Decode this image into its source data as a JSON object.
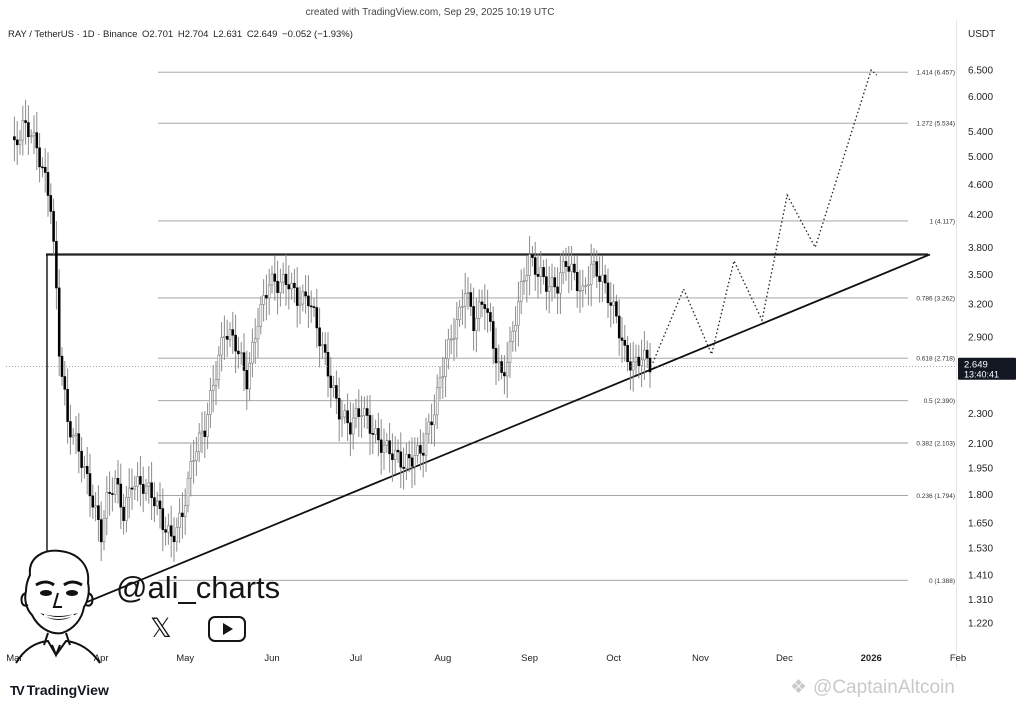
{
  "header": {
    "created_text": "created with TradingView.com, Sep 29, 2025 10:19 UTC",
    "symbol": "RAY / TetherUS · 1D · Binance",
    "open": "O2.701",
    "high": "H2.704",
    "low": "L2.631",
    "close": "C2.649",
    "change": "−0.052 (−1.93%)",
    "currency": "USDT"
  },
  "footer": {
    "brand": "TradingView",
    "brand_logo": "TV",
    "watermark": "@CaptainAltcoin",
    "handle": "@ali_charts",
    "social_icons": [
      "x-icon",
      "youtube-icon"
    ]
  },
  "colors": {
    "candle": "#000000",
    "wick": "#8a8a8a",
    "fib_line": "#9a9a9a",
    "price_label_bg": "#131722",
    "price_label_text": "#ffffff"
  },
  "chart_data": {
    "type": "candlestick",
    "symbol": "RAY/USDT",
    "interval": "1D",
    "x_axis": {
      "tick_labels": [
        "Mar",
        "Apr",
        "May",
        "Jun",
        "Jul",
        "Aug",
        "Sep",
        "Oct",
        "Nov",
        "Dec",
        "2026",
        "Feb"
      ]
    },
    "y_axis": {
      "scale": "log",
      "range": [
        1.15,
        7.1
      ],
      "tick_labels": [
        "6.500",
        "6.000",
        "5.400",
        "5.000",
        "4.600",
        "4.200",
        "3.800",
        "3.500",
        "3.200",
        "2.900",
        "2.300",
        "2.100",
        "1.950",
        "1.800",
        "1.650",
        "1.530",
        "1.410",
        "1.310",
        "1.220"
      ]
    },
    "current_price": {
      "price": "2.649",
      "countdown": "13:40:41",
      "value": 2.649
    },
    "fib_levels": [
      {
        "label": "1.414 (6.457)",
        "value": 6.457
      },
      {
        "label": "1.272 (5.534)",
        "value": 5.534
      },
      {
        "label": "1 (4.117)",
        "value": 4.117
      },
      {
        "label": "0.786 (3.262)",
        "value": 3.262
      },
      {
        "label": "0.618 (2.718)",
        "value": 2.718
      },
      {
        "label": "0.5 (2.390)",
        "value": 2.39
      },
      {
        "label": "0.382 (2.103)",
        "value": 2.103
      },
      {
        "label": "0.236 (1.794)",
        "value": 1.794
      },
      {
        "label": "0 (1.388)",
        "value": 1.388
      }
    ],
    "resistance_level": 3.72,
    "support_trendline": [
      {
        "x": "2025-03-18",
        "y": 1.26
      },
      {
        "x": "2026-01-22",
        "y": 3.72
      }
    ],
    "close_path": [
      {
        "x": "2025-03-01",
        "y": 5.2
      },
      {
        "x": "2025-03-04",
        "y": 5.45
      },
      {
        "x": "2025-03-07",
        "y": 5.3
      },
      {
        "x": "2025-03-11",
        "y": 4.85
      },
      {
        "x": "2025-03-14",
        "y": 4.4
      },
      {
        "x": "2025-03-17",
        "y": 2.8
      },
      {
        "x": "2025-03-20",
        "y": 2.2
      },
      {
        "x": "2025-03-24",
        "y": 2.05
      },
      {
        "x": "2025-03-28",
        "y": 1.85
      },
      {
        "x": "2025-04-01",
        "y": 1.6
      },
      {
        "x": "2025-04-03",
        "y": 1.75
      },
      {
        "x": "2025-04-06",
        "y": 1.85
      },
      {
        "x": "2025-04-09",
        "y": 1.7
      },
      {
        "x": "2025-04-12",
        "y": 1.9
      },
      {
        "x": "2025-04-16",
        "y": 1.85
      },
      {
        "x": "2025-04-20",
        "y": 1.75
      },
      {
        "x": "2025-04-23",
        "y": 1.65
      },
      {
        "x": "2025-04-26",
        "y": 1.6
      },
      {
        "x": "2025-04-30",
        "y": 1.7
      },
      {
        "x": "2025-05-04",
        "y": 2.0
      },
      {
        "x": "2025-05-08",
        "y": 2.2
      },
      {
        "x": "2025-05-11",
        "y": 2.55
      },
      {
        "x": "2025-05-15",
        "y": 2.95
      },
      {
        "x": "2025-05-19",
        "y": 2.8
      },
      {
        "x": "2025-05-23",
        "y": 2.55
      },
      {
        "x": "2025-05-27",
        "y": 3.1
      },
      {
        "x": "2025-05-31",
        "y": 3.4
      },
      {
        "x": "2025-06-03",
        "y": 3.35
      },
      {
        "x": "2025-06-07",
        "y": 3.45
      },
      {
        "x": "2025-06-10",
        "y": 3.3
      },
      {
        "x": "2025-06-14",
        "y": 3.25
      },
      {
        "x": "2025-06-18",
        "y": 2.85
      },
      {
        "x": "2025-06-22",
        "y": 2.55
      },
      {
        "x": "2025-06-25",
        "y": 2.35
      },
      {
        "x": "2025-06-29",
        "y": 2.2
      },
      {
        "x": "2025-07-03",
        "y": 2.3
      },
      {
        "x": "2025-07-07",
        "y": 2.2
      },
      {
        "x": "2025-07-11",
        "y": 2.1
      },
      {
        "x": "2025-07-15",
        "y": 2.0
      },
      {
        "x": "2025-07-18",
        "y": 1.95
      },
      {
        "x": "2025-07-22",
        "y": 2.05
      },
      {
        "x": "2025-07-25",
        "y": 2.1
      },
      {
        "x": "2025-07-29",
        "y": 2.3
      },
      {
        "x": "2025-08-01",
        "y": 2.6
      },
      {
        "x": "2025-08-04",
        "y": 2.9
      },
      {
        "x": "2025-08-07",
        "y": 3.15
      },
      {
        "x": "2025-08-09",
        "y": 3.4
      },
      {
        "x": "2025-08-12",
        "y": 3.0
      },
      {
        "x": "2025-08-16",
        "y": 3.2
      },
      {
        "x": "2025-08-19",
        "y": 2.85
      },
      {
        "x": "2025-08-22",
        "y": 2.6
      },
      {
        "x": "2025-08-25",
        "y": 2.8
      },
      {
        "x": "2025-08-29",
        "y": 3.3
      },
      {
        "x": "2025-09-01",
        "y": 3.65
      },
      {
        "x": "2025-09-05",
        "y": 3.55
      },
      {
        "x": "2025-09-08",
        "y": 3.4
      },
      {
        "x": "2025-09-11",
        "y": 3.35
      },
      {
        "x": "2025-09-14",
        "y": 3.6
      },
      {
        "x": "2025-09-17",
        "y": 3.5
      },
      {
        "x": "2025-09-20",
        "y": 3.35
      },
      {
        "x": "2025-09-23",
        "y": 3.6
      },
      {
        "x": "2025-09-26",
        "y": 3.45
      },
      {
        "x": "2025-09-29",
        "y": 3.25
      },
      {
        "x": "2025-10-02",
        "y": 3.1
      },
      {
        "x": "2025-10-05",
        "y": 2.8
      },
      {
        "x": "2025-10-08",
        "y": 2.65
      },
      {
        "x": "2025-10-11",
        "y": 2.7
      },
      {
        "x": "2025-10-14",
        "y": 2.649
      }
    ],
    "projection": [
      {
        "x": "2025-10-15",
        "y": 2.68
      },
      {
        "x": "2025-10-26",
        "y": 3.35
      },
      {
        "x": "2025-11-05",
        "y": 2.75
      },
      {
        "x": "2025-11-13",
        "y": 3.65
      },
      {
        "x": "2025-11-23",
        "y": 3.05
      },
      {
        "x": "2025-12-02",
        "y": 4.45
      },
      {
        "x": "2025-12-12",
        "y": 3.8
      },
      {
        "x": "2026-01-01",
        "y": 6.5
      },
      {
        "x": "2026-01-03",
        "y": 6.4
      }
    ]
  }
}
